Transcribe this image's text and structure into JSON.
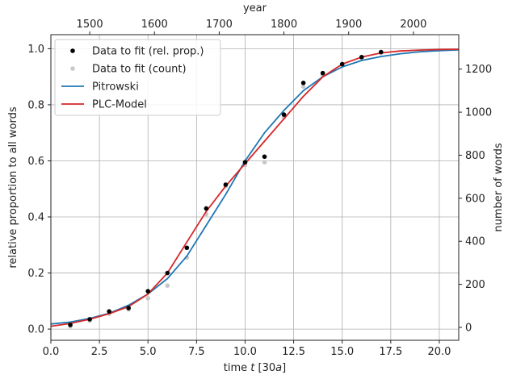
{
  "chart_data": {
    "type": "scatter",
    "title": "",
    "xlabel": "time $t$ [30$a$]",
    "xlabel_parts": {
      "pre": "time ",
      "var": "t",
      "mid": " [30",
      "unit": "a",
      "post": "]"
    },
    "ylabel": "relative proportion to all words",
    "x2label": "year",
    "y2label": "number of words",
    "xlim": [
      0.0,
      21.0
    ],
    "ylim": [
      -0.04,
      1.05
    ],
    "y2lim": [
      -60,
      1360
    ],
    "x2lim": [
      1440,
      2070
    ],
    "x_ticks": [
      0.0,
      2.5,
      5.0,
      7.5,
      10.0,
      12.5,
      15.0,
      17.5,
      20.0
    ],
    "x_tick_labels": [
      "0.0",
      "2.5",
      "5.0",
      "7.5",
      "10.0",
      "12.5",
      "15.0",
      "17.5",
      "20.0"
    ],
    "y_ticks": [
      0.0,
      0.2,
      0.4,
      0.6,
      0.8,
      1.0
    ],
    "y_tick_labels": [
      "0.0",
      "0.2",
      "0.4",
      "0.6",
      "0.8",
      "1.0"
    ],
    "x2_ticks": [
      1500,
      1600,
      1700,
      1800,
      1900,
      2000
    ],
    "x2_tick_labels": [
      "1500",
      "1600",
      "1700",
      "1800",
      "1900",
      "2000"
    ],
    "y2_ticks": [
      0,
      200,
      400,
      600,
      800,
      1000,
      1200
    ],
    "y2_tick_labels": [
      "0",
      "200",
      "400",
      "600",
      "800",
      "1000",
      "1200"
    ],
    "grid": true,
    "legend_position": "top-left",
    "series": [
      {
        "name": "Data to fit (rel. prop.)",
        "kind": "scatter",
        "color": "#000000",
        "x": [
          1,
          2,
          3,
          4,
          5,
          6,
          7,
          8,
          9,
          10,
          11,
          12,
          13,
          14,
          15,
          16,
          17
        ],
        "y": [
          0.015,
          0.035,
          0.063,
          0.075,
          0.135,
          0.2,
          0.29,
          0.43,
          0.515,
          0.595,
          0.615,
          0.765,
          0.878,
          0.913,
          0.945,
          0.97,
          0.988
        ]
      },
      {
        "name": "Data to fit (count)",
        "kind": "scatter",
        "color": "#c8c8c8",
        "x": [
          1,
          2,
          3,
          4,
          5,
          6,
          7,
          8,
          9,
          10,
          11,
          12,
          13,
          14,
          15,
          16,
          17
        ],
        "y": [
          0.01,
          0.03,
          0.055,
          0.07,
          0.11,
          0.155,
          0.255,
          0.41,
          0.51,
          0.585,
          0.595,
          0.755,
          0.865,
          0.905,
          0.94,
          0.967,
          0.985
        ]
      },
      {
        "name": "Pitrowski",
        "kind": "line",
        "color": "#1f77b4",
        "x": [
          0,
          1,
          2,
          3,
          4,
          5,
          6,
          7,
          8,
          9,
          10,
          11,
          12,
          13,
          14,
          15,
          16,
          17,
          18,
          19,
          20,
          21
        ],
        "y": [
          0.018,
          0.025,
          0.038,
          0.056,
          0.085,
          0.125,
          0.18,
          0.26,
          0.37,
          0.48,
          0.6,
          0.7,
          0.78,
          0.85,
          0.9,
          0.935,
          0.958,
          0.972,
          0.982,
          0.989,
          0.993,
          0.996
        ]
      },
      {
        "name": "PLC-Model",
        "kind": "line",
        "color": "#d62728",
        "x": [
          0,
          1,
          2,
          3,
          4,
          5,
          6,
          7,
          8,
          9,
          10,
          11,
          12,
          13,
          14,
          15,
          16,
          17,
          18,
          19,
          20,
          21
        ],
        "y": [
          0.01,
          0.02,
          0.035,
          0.055,
          0.08,
          0.125,
          0.2,
          0.31,
          0.42,
          0.51,
          0.59,
          0.67,
          0.75,
          0.83,
          0.9,
          0.945,
          0.97,
          0.985,
          0.992,
          0.995,
          0.997,
          0.998
        ]
      }
    ]
  }
}
